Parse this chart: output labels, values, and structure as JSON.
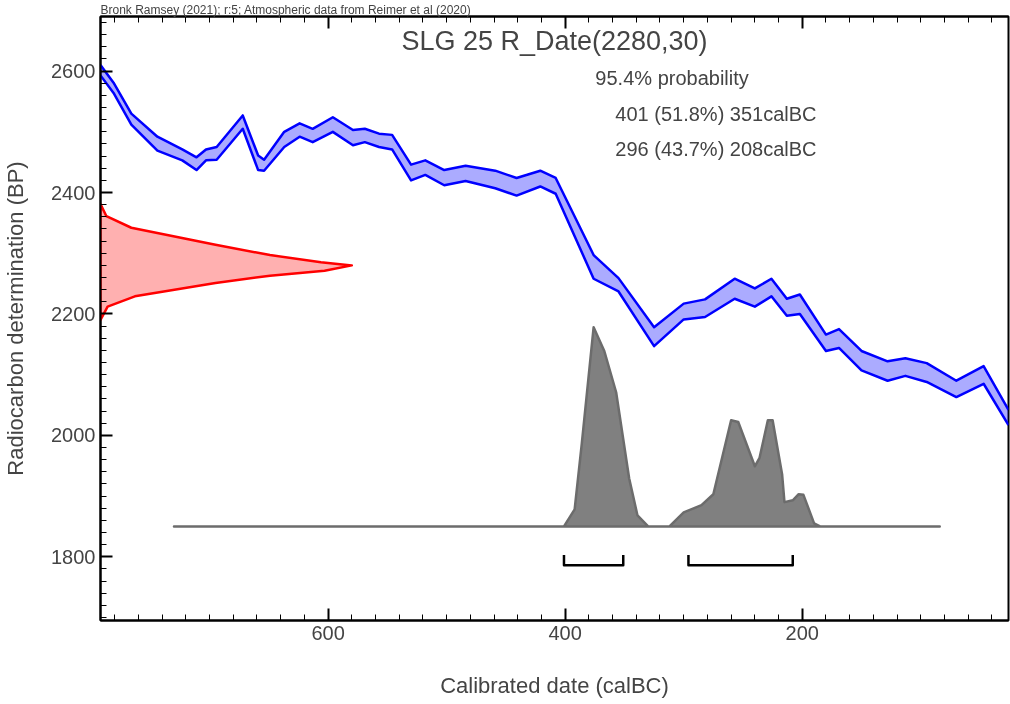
{
  "chart_data": {
    "type": "area",
    "title": "SLG 25 R_Date(2280,30)",
    "xlabel": "Calibrated date (calBC)",
    "ylabel": "Radiocarbon determination (BP)",
    "annotations": [
      "Bronk Ramsey (2021); r:5; Atmospheric data from Reimer et al (2020)",
      "95.4% probability",
      "401 (51.8%) 351calBC",
      "296 (43.7%) 208calBC"
    ],
    "xlim": [
      792,
      26
    ],
    "ylim": [
      1695,
      2690
    ],
    "xticks": [
      600,
      400,
      200
    ],
    "yticks": [
      1800,
      2000,
      2200,
      2400,
      2600
    ],
    "grid": false,
    "series": [
      {
        "type": "line",
        "color": "#0000ff",
        "x": [
          792,
          781,
          766,
          744,
          723,
          711,
          703,
          694,
          672,
          659,
          654,
          637,
          624,
          613,
          596,
          579,
          569,
          557,
          546,
          530,
          518,
          502,
          484,
          459,
          441,
          421,
          408,
          376,
          355,
          325,
          300,
          282,
          257,
          240,
          226,
          213,
          202,
          180,
          169,
          150,
          128,
          113,
          95,
          70,
          47,
          26
        ],
        "values": [
          2610,
          2581,
          2530,
          2492,
          2471,
          2458,
          2471,
          2475,
          2527,
          2461,
          2454,
          2500,
          2514,
          2505,
          2524,
          2503,
          2505,
          2497,
          2495,
          2446,
          2453,
          2437,
          2444,
          2436,
          2424,
          2436,
          2424,
          2297,
          2259,
          2178,
          2217,
          2224,
          2258,
          2242,
          2258,
          2225,
          2232,
          2166,
          2175,
          2139,
          2122,
          2127,
          2119,
          2090,
          2114,
          2042
        ],
        "upper": [
          2610,
          2581,
          2530,
          2492,
          2471,
          2458,
          2471,
          2475,
          2527,
          2461,
          2454,
          2500,
          2514,
          2505,
          2524,
          2503,
          2505,
          2497,
          2495,
          2446,
          2453,
          2437,
          2444,
          2436,
          2424,
          2436,
          2424,
          2297,
          2259,
          2178,
          2217,
          2224,
          2258,
          2242,
          2258,
          2225,
          2232,
          2166,
          2175,
          2139,
          2122,
          2127,
          2119,
          2090,
          2114,
          2042
        ],
        "lower": [
          2593,
          2564,
          2512,
          2469,
          2453,
          2437,
          2453,
          2454,
          2505,
          2437,
          2436,
          2475,
          2492,
          2483,
          2500,
          2478,
          2483,
          2475,
          2471,
          2420,
          2429,
          2412,
          2419,
          2407,
          2395,
          2410,
          2398,
          2258,
          2237,
          2147,
          2191,
          2195,
          2225,
          2212,
          2229,
          2197,
          2200,
          2139,
          2144,
          2107,
          2090,
          2098,
          2088,
          2063,
          2085,
          2017
        ]
      },
      {
        "type": "line",
        "color": "#0000ff",
        "x": [
          792,
          781,
          766,
          744,
          723,
          711,
          703,
          694,
          672,
          659,
          654,
          637,
          624,
          613,
          596,
          579,
          569,
          557,
          546,
          530,
          518,
          502,
          484,
          459,
          441,
          421,
          408,
          376,
          355,
          325,
          300,
          282,
          257,
          240,
          226,
          213,
          202,
          180,
          169,
          150,
          128,
          113,
          95,
          70,
          47,
          26
        ],
        "values": [
          2593,
          2564,
          2512,
          2469,
          2453,
          2437,
          2453,
          2454,
          2505,
          2437,
          2436,
          2475,
          2492,
          2483,
          2500,
          2478,
          2483,
          2475,
          2471,
          2420,
          2429,
          2412,
          2419,
          2407,
          2395,
          2410,
          2398,
          2258,
          2237,
          2147,
          2191,
          2195,
          2225,
          2212,
          2229,
          2197,
          2200,
          2139,
          2144,
          2107,
          2090,
          2098,
          2088,
          2063,
          2085,
          2017
        ]
      },
      {
        "color": "#ffb0b0",
        "x": [
          792,
          787,
          766,
          695,
          649,
          606,
          580,
          603,
          649,
          695,
          763,
          786,
          792
        ],
        "values": [
          2381,
          2361,
          2342,
          2314,
          2297,
          2285,
          2280,
          2271,
          2263,
          2251,
          2229,
          2212,
          2190
        ]
      },
      {
        "color": "#808080",
        "x": [
          730,
          401,
          392,
          386,
          376,
          367,
          357,
          346,
          339,
          330,
          312,
          300,
          285,
          275,
          260,
          254,
          240,
          236,
          229,
          225,
          217,
          215,
          208,
          203,
          199,
          190,
          185,
          84
        ],
        "values": [
          1850,
          1850,
          1878,
          1986,
          2178,
          2139,
          2071,
          1929,
          1868,
          1850,
          1850,
          1873,
          1885,
          1903,
          2025,
          2022,
          1949,
          1963,
          2025,
          2025,
          1936,
          1890,
          1893,
          1903,
          1902,
          1855,
          1850,
          1850
        ]
      },
      {
        "type": "line",
        "color": "#000000",
        "x": [
          401,
          401,
          351,
          351
        ],
        "values": [
          1803,
          1786,
          1786,
          1803
        ]
      },
      {
        "type": "line",
        "color": "#000000",
        "x": [
          296,
          296,
          208,
          208
        ],
        "values": [
          1803,
          1786,
          1786,
          1803
        ]
      }
    ]
  }
}
